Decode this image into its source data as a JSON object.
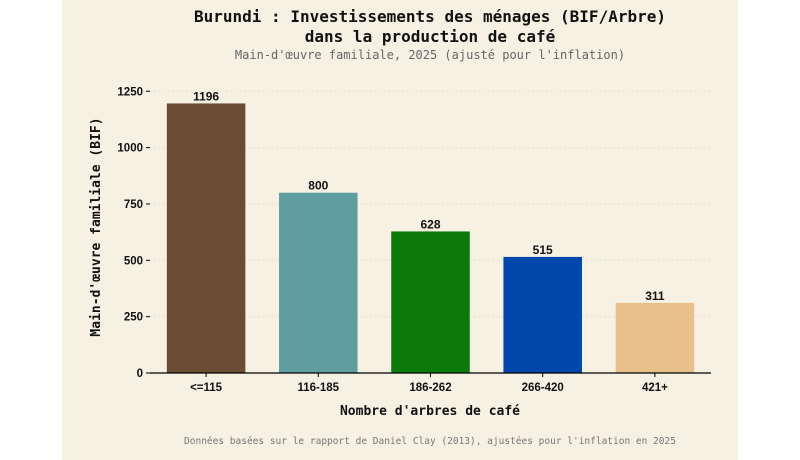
{
  "chart_data": {
    "type": "bar",
    "title_line1": "Burundi : Investissements des ménages (BIF/Arbre)",
    "title_line2": "dans la production de café",
    "subtitle": "Main-d'œuvre familiale, 2025 (ajusté pour l'inflation)",
    "xlabel": "Nombre d'arbres de café",
    "ylabel": "Main-d'œuvre familiale (BIF)",
    "caption": "Données basées sur le rapport de Daniel Clay (2013), ajustées pour l'inflation en 2025",
    "categories": [
      "<=115",
      "116-185",
      "186-262",
      "266-420",
      "421+"
    ],
    "values": [
      1196,
      800,
      628,
      515,
      311
    ],
    "value_labels": [
      "1196",
      "800",
      "628",
      "515",
      "311"
    ],
    "colors": [
      "#6b4c35",
      "#5f9ea0",
      "#0b7a0b",
      "#0047ab",
      "#e8c18a"
    ],
    "yticks": [
      0,
      250,
      500,
      750,
      1000,
      1250
    ],
    "ytick_labels": [
      "0",
      "250",
      "500",
      "750",
      "1000",
      "1250"
    ],
    "ylim": [
      0,
      1300
    ],
    "grid": "horizontal-dotted",
    "legend": "none"
  }
}
